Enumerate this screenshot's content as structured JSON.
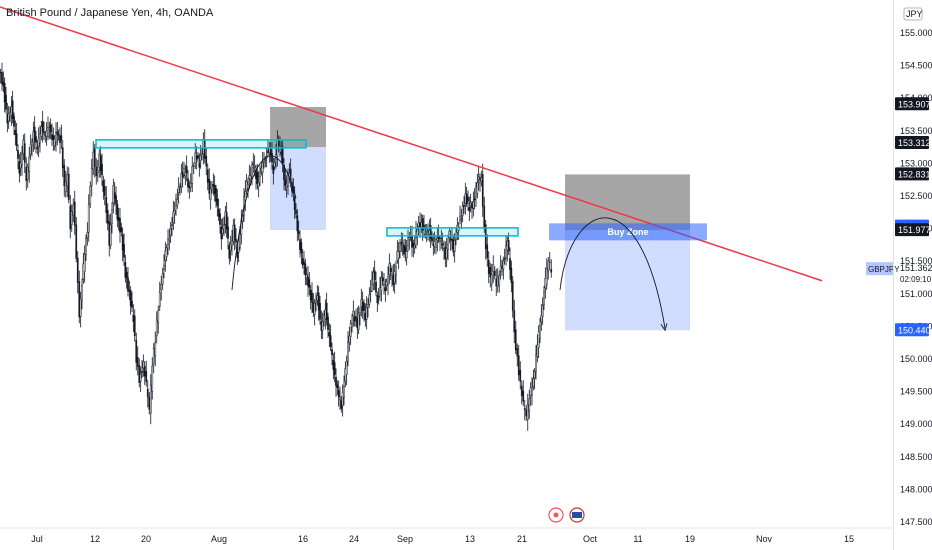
{
  "title": "British Pound / Japanese Yen, 4h, OANDA",
  "currency_badge": "JPY",
  "buy_zone_label": "Buy Zone",
  "symbol_label": "GBPJPY",
  "countdown": "02:09:10",
  "colors": {
    "trendline": "#f23645",
    "zone_cyan": "#00bcd4",
    "candle": "#131722",
    "price_dark": "#131722",
    "price_blue": "#2962ff",
    "symbol_tag": "#b3c6ff"
  },
  "chart_data": {
    "type": "candlestick",
    "title": "British Pound / Japanese Yen, 4h, OANDA",
    "ylim": [
      147.5,
      155.6
    ],
    "y_ticks": [
      147.5,
      148.0,
      148.5,
      149.0,
      149.5,
      150.0,
      150.5,
      151.0,
      151.5,
      152.0,
      152.5,
      153.0,
      153.5,
      154.0,
      154.5,
      155.0,
      155.5
    ],
    "x_ticks": [
      "Jul",
      "12",
      "20",
      "Aug",
      "16",
      "24",
      "Sep",
      "13",
      "21",
      "Oct",
      "11",
      "19",
      "Nov",
      "15"
    ],
    "price_path": [
      [
        0,
        154.4
      ],
      [
        4,
        154.2
      ],
      [
        8,
        153.6
      ],
      [
        12,
        153.9
      ],
      [
        16,
        153.4
      ],
      [
        20,
        152.9
      ],
      [
        24,
        153.3
      ],
      [
        27,
        152.7
      ],
      [
        30,
        153.1
      ],
      [
        34,
        153.5
      ],
      [
        38,
        153.2
      ],
      [
        42,
        153.6
      ],
      [
        46,
        153.4
      ],
      [
        50,
        153.6
      ],
      [
        54,
        153.3
      ],
      [
        58,
        153.5
      ],
      [
        62,
        153.3
      ],
      [
        65,
        152.6
      ],
      [
        68,
        152.8
      ],
      [
        71,
        152.0
      ],
      [
        74,
        152.4
      ],
      [
        77,
        151.6
      ],
      [
        80,
        150.7
      ],
      [
        84,
        151.4
      ],
      [
        88,
        152.0
      ],
      [
        91,
        152.7
      ],
      [
        94,
        153.2
      ],
      [
        97,
        152.8
      ],
      [
        100,
        153.1
      ],
      [
        104,
        152.6
      ],
      [
        107,
        152.3
      ],
      [
        110,
        151.8
      ],
      [
        114,
        152.6
      ],
      [
        118,
        152.2
      ],
      [
        122,
        151.9
      ],
      [
        126,
        151.3
      ],
      [
        130,
        151.0
      ],
      [
        134,
        150.6
      ],
      [
        137,
        150.0
      ],
      [
        140,
        149.7
      ],
      [
        144,
        149.9
      ],
      [
        147,
        149.6
      ],
      [
        150,
        149.2
      ],
      [
        153,
        149.9
      ],
      [
        156,
        150.3
      ],
      [
        159,
        150.8
      ],
      [
        162,
        151.2
      ],
      [
        166,
        151.6
      ],
      [
        170,
        151.9
      ],
      [
        174,
        152.2
      ],
      [
        178,
        152.5
      ],
      [
        182,
        152.8
      ],
      [
        186,
        152.9
      ],
      [
        190,
        152.6
      ],
      [
        193,
        152.9
      ],
      [
        196,
        153.1
      ],
      [
        200,
        153.0
      ],
      [
        204,
        153.3
      ],
      [
        207,
        152.9
      ],
      [
        210,
        152.5
      ],
      [
        214,
        152.7
      ],
      [
        218,
        152.3
      ],
      [
        222,
        151.9
      ],
      [
        226,
        152.2
      ],
      [
        230,
        151.6
      ],
      [
        234,
        152.0
      ],
      [
        238,
        151.6
      ],
      [
        242,
        152.1
      ],
      [
        246,
        152.6
      ],
      [
        250,
        152.8
      ],
      [
        254,
        153.0
      ],
      [
        258,
        152.7
      ],
      [
        262,
        152.9
      ],
      [
        266,
        153.1
      ],
      [
        270,
        153.2
      ],
      [
        274,
        152.9
      ],
      [
        278,
        153.3
      ],
      [
        282,
        153.2
      ],
      [
        286,
        152.6
      ],
      [
        290,
        152.9
      ],
      [
        294,
        152.5
      ],
      [
        298,
        152.0
      ],
      [
        302,
        151.6
      ],
      [
        306,
        151.3
      ],
      [
        310,
        151.1
      ],
      [
        314,
        150.7
      ],
      [
        318,
        151.0
      ],
      [
        322,
        150.4
      ],
      [
        326,
        150.8
      ],
      [
        330,
        150.3
      ],
      [
        334,
        149.9
      ],
      [
        338,
        149.5
      ],
      [
        342,
        149.3
      ],
      [
        346,
        149.8
      ],
      [
        350,
        150.4
      ],
      [
        354,
        150.7
      ],
      [
        358,
        150.5
      ],
      [
        362,
        150.9
      ],
      [
        366,
        150.6
      ],
      [
        370,
        151.0
      ],
      [
        374,
        151.3
      ],
      [
        378,
        150.9
      ],
      [
        382,
        151.2
      ],
      [
        386,
        151.1
      ],
      [
        390,
        151.4
      ],
      [
        394,
        151.2
      ],
      [
        398,
        151.6
      ],
      [
        402,
        151.8
      ],
      [
        406,
        151.6
      ],
      [
        410,
        151.9
      ],
      [
        414,
        151.7
      ],
      [
        418,
        152.0
      ],
      [
        422,
        152.1
      ],
      [
        426,
        151.9
      ],
      [
        430,
        152.0
      ],
      [
        434,
        151.7
      ],
      [
        438,
        151.9
      ],
      [
        442,
        151.8
      ],
      [
        446,
        151.6
      ],
      [
        450,
        151.9
      ],
      [
        454,
        151.7
      ],
      [
        458,
        152.0
      ],
      [
        462,
        152.2
      ],
      [
        466,
        152.5
      ],
      [
        470,
        152.3
      ],
      [
        474,
        152.4
      ],
      [
        478,
        152.7
      ],
      [
        482,
        152.8
      ],
      [
        485,
        152.0
      ],
      [
        488,
        151.5
      ],
      [
        491,
        151.2
      ],
      [
        494,
        151.4
      ],
      [
        497,
        151.1
      ],
      [
        500,
        151.3
      ],
      [
        504,
        151.5
      ],
      [
        508,
        151.8
      ],
      [
        512,
        151.2
      ],
      [
        515,
        150.4
      ],
      [
        518,
        150.0
      ],
      [
        521,
        149.6
      ],
      [
        524,
        149.3
      ],
      [
        527,
        149.1
      ],
      [
        530,
        149.4
      ],
      [
        534,
        149.7
      ],
      [
        538,
        150.2
      ],
      [
        542,
        150.7
      ],
      [
        546,
        151.2
      ],
      [
        549,
        151.5
      ],
      [
        552,
        151.36
      ]
    ],
    "trendline": [
      [
        0,
        155.4
      ],
      [
        822,
        151.2
      ]
    ],
    "resistance_zones": [
      {
        "x0": 96,
        "x1": 306,
        "y": 153.3
      },
      {
        "x0": 387,
        "x1": 518,
        "y": 151.95
      }
    ],
    "buy_zone": {
      "label": "Buy Zone",
      "top": 152.08,
      "bottom": 151.82
    },
    "projection": {
      "entry": 151.977,
      "stop": 152.831,
      "target": 150.44
    },
    "price_tags": [
      {
        "value": "153.907",
        "style": "dark"
      },
      {
        "value": "153.312",
        "style": "dark"
      },
      {
        "value": "152.831",
        "style": "dark"
      },
      {
        "value": "152.030",
        "style": "blue"
      },
      {
        "value": "151.977",
        "style": "dark"
      },
      {
        "value": "151.362",
        "style": "symbol"
      },
      {
        "value": "150.440",
        "style": "blue"
      }
    ]
  }
}
